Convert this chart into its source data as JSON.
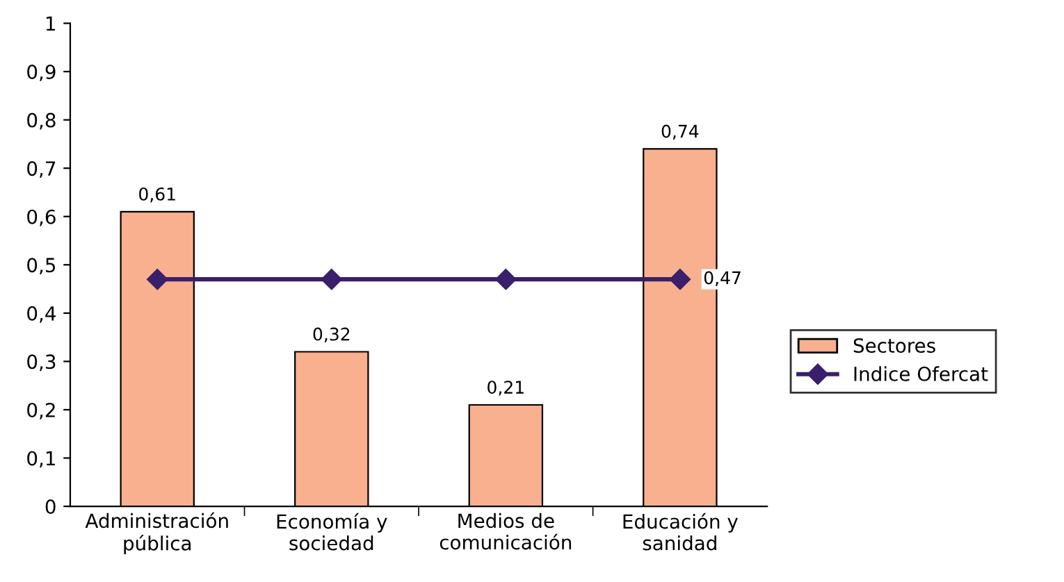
{
  "chart_data": {
    "type": "bar",
    "categories": [
      "Administración\npública",
      "Economía y\nsociedad",
      "Medios de\ncomunicación",
      "Educación y\nsanidad"
    ],
    "series": [
      {
        "name": "Sectores",
        "color": "#f8b08e",
        "values": [
          0.61,
          0.32,
          0.21,
          0.74
        ],
        "value_labels": [
          "0,61",
          "0,32",
          "0,21",
          "0,74"
        ]
      },
      {
        "name": "Indice Ofercat",
        "type": "line",
        "color": "#3a1f6b",
        "marker": "diamond",
        "values": [
          0.47,
          0.47,
          0.47,
          0.47
        ],
        "value_labels": [
          null,
          null,
          null,
          "0,47"
        ]
      }
    ],
    "ylim": [
      0,
      1
    ],
    "yticks": [
      0,
      {
        "value": 0.1,
        "label": "0,1"
      },
      {
        "value": 0.2,
        "label": "0,2"
      },
      {
        "value": 0.3,
        "label": "0,3"
      },
      {
        "value": 0.4,
        "label": "0,4"
      },
      {
        "value": 0.5,
        "label": "0,5"
      },
      {
        "value": 0.6,
        "label": "0,6"
      },
      {
        "value": 0.7,
        "label": "0,7"
      },
      {
        "value": 0.8,
        "label": "0,8"
      },
      {
        "value": 0.9,
        "label": "0,9"
      },
      1
    ],
    "grid": false,
    "legend": "right"
  }
}
